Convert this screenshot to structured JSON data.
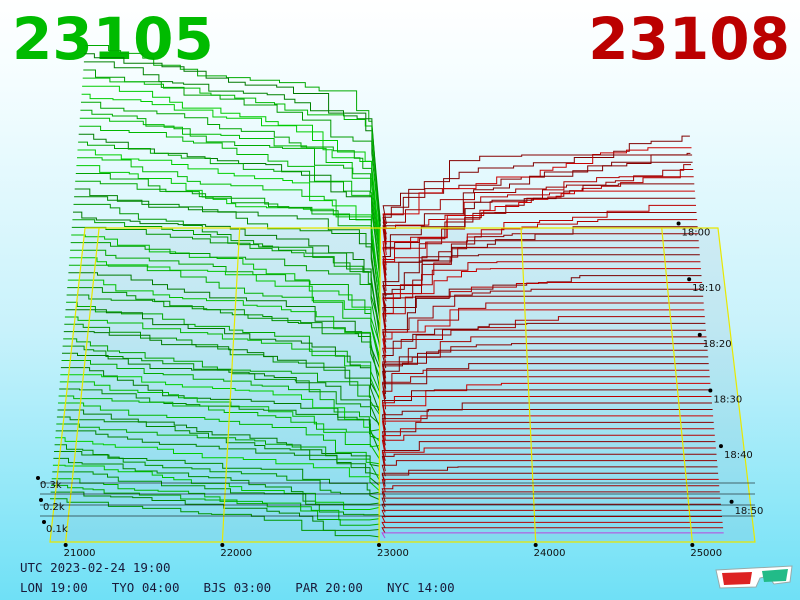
{
  "header": {
    "bid_price": "23105",
    "ask_price": "23108",
    "bid_color": "#00bb00",
    "ask_color": "#bb0000"
  },
  "footer": {
    "utc_time": "UTC 2023-02-24 19:00",
    "timezones": [
      "LON 19:00",
      "TYO 04:00",
      "BJS 03:00",
      "PAR 20:00",
      "NYC 14:00"
    ],
    "icon": "3d-glasses-icon"
  },
  "chart_data": {
    "type": "area",
    "title": "",
    "xlabel": "",
    "ylabel": "",
    "x_ticks": [
      "21000",
      "22000",
      "23000",
      "24000",
      "25000"
    ],
    "y_ticks": [
      "0.1k",
      "0.2k",
      "0.3k"
    ],
    "time_ticks": [
      "18:00",
      "18:10",
      "18:20",
      "18:30",
      "18:40",
      "18:50"
    ],
    "x_range": [
      20900,
      25400
    ],
    "grid": true,
    "series": [
      {
        "side": "bid",
        "color": "#00aa00",
        "depth_values_k": [
          0.32,
          0.41,
          0.52,
          0.58,
          0.66,
          0.71,
          0.75,
          0.79
        ]
      },
      {
        "side": "ask",
        "color": "#aa0000",
        "depth_values_k": [
          0.05,
          0.12,
          0.17,
          0.22,
          0.26,
          0.27,
          0.29,
          0.31
        ]
      }
    ]
  }
}
